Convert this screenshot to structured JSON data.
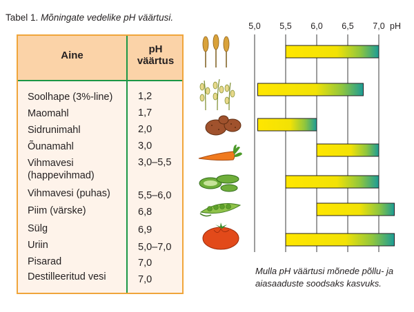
{
  "caption": {
    "prefix": "Tabel 1.",
    "title": "Mõningate vedelike pH väärtusi."
  },
  "table": {
    "header_substance": "Aine",
    "header_ph_line1": "pH",
    "header_ph_line2": "väärtus",
    "rows": [
      {
        "name": "Soolhape (3%-line)",
        "value": "1,2"
      },
      {
        "name": "Maomahl",
        "value": "1,7"
      },
      {
        "name": "Sidrunimahl",
        "value": "2,0"
      },
      {
        "name": "Õunamahl",
        "value": "3,0"
      },
      {
        "name": "Vihmavesi",
        "name2": "(happevihmad)",
        "value": "3,0–5,5"
      },
      {
        "name": "Vihmavesi (puhas)",
        "value": "5,5–6,0"
      },
      {
        "name": "Piim (värske)",
        "value": "6,8"
      },
      {
        "name": "Sülg",
        "value": "6,9"
      },
      {
        "name": "Uriin",
        "value": "5,0–7,0"
      },
      {
        "name": "Pisarad",
        "value": "7,0"
      },
      {
        "name": "Destilleeritud vesi",
        "value": "7,0"
      }
    ],
    "colors": {
      "border": "#f0a53a",
      "header_bg": "#fbd3a8",
      "body_bg": "#fef3ea",
      "divider": "#1a9645"
    }
  },
  "chart_data": {
    "type": "bar",
    "orientation": "horizontal-range",
    "x_unit": "pH",
    "xlim": [
      5.0,
      7.0
    ],
    "ticks": [
      {
        "value": 5.0,
        "label": "5,0"
      },
      {
        "value": 5.5,
        "label": "5,5"
      },
      {
        "value": 6.0,
        "label": "6,0"
      },
      {
        "value": 6.5,
        "label": "6,5"
      },
      {
        "value": 7.0,
        "label": "7,0"
      }
    ],
    "grid": "vertical lines at ticks",
    "bars": [
      {
        "crop": "wheat-icon",
        "from": 5.5,
        "to": 7.0
      },
      {
        "crop": "oat-icon",
        "from": 5.05,
        "to": 6.75
      },
      {
        "crop": "potato-icon",
        "from": 5.05,
        "to": 6.0
      },
      {
        "crop": "carrot-icon",
        "from": 6.0,
        "to": 7.0
      },
      {
        "crop": "cucumber-icon",
        "from": 5.5,
        "to": 7.0
      },
      {
        "crop": "pea-icon",
        "from": 6.0,
        "to": 7.25
      },
      {
        "crop": "tomato-icon",
        "from": 5.5,
        "to": 7.25
      }
    ],
    "bar_gradient": [
      "#ffe600",
      "#f7e600",
      "#7cc242",
      "#1fa08f"
    ],
    "caption": "Mulla pH väärtusi mõnede põllu- ja aiasaaduste soodsaks kasvuks."
  }
}
